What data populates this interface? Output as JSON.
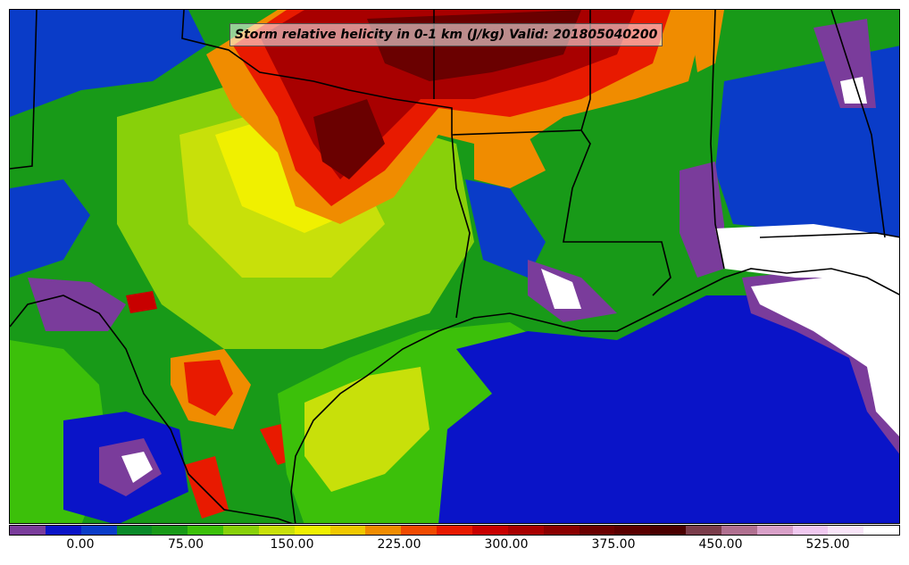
{
  "title": "Storm relative helicity in 0-1 km (J/kg) Valid: 201805040200",
  "colorbar": {
    "colors": [
      "#7a3c9b",
      "#0a14c8",
      "#0a3cc8",
      "#0a8a2a",
      "#189a18",
      "#3cc00a",
      "#88d00a",
      "#c8e00a",
      "#f0f000",
      "#f0c800",
      "#f08c00",
      "#f04a00",
      "#e81a00",
      "#c80000",
      "#a80000",
      "#8a0000",
      "#6a0000",
      "#5a0000",
      "#4a0000",
      "#7a3c4a",
      "#b07090",
      "#d8a0c8",
      "#f0c8f0",
      "#f8e4f8",
      "#ffffff"
    ],
    "tick_labels": [
      "0.00",
      "75.00",
      "150.00",
      "225.00",
      "300.00",
      "375.00",
      "450.00",
      "525.00"
    ]
  },
  "legend_colors": {
    "purple": "#7a3c9b",
    "blue": "#0a14c8",
    "dark_green": "#0a8a2a",
    "green": "#3cc00a",
    "lime": "#c8e00a",
    "yellow": "#f0f000",
    "orange": "#f08c00",
    "red": "#e81a00",
    "dark_red": "#8a0000",
    "white": "#ffffff"
  }
}
